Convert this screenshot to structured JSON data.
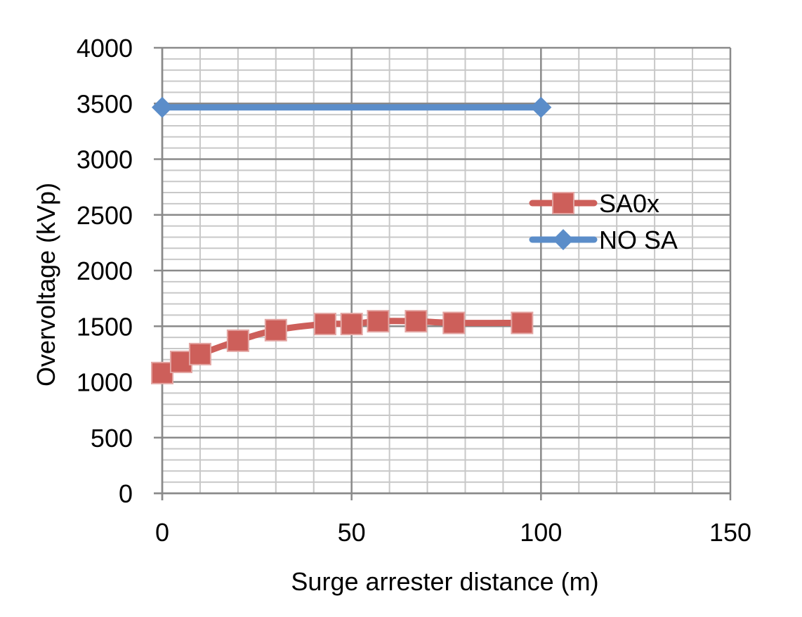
{
  "chart_data": {
    "type": "scatter",
    "xlabel": "Surge arrester distance (m)",
    "ylabel": "Overvoltage (kVp)",
    "xlim": [
      0,
      150
    ],
    "ylim": [
      0,
      4000
    ],
    "x_ticks": [
      "0",
      "50",
      "100",
      "150"
    ],
    "y_ticks": [
      "0",
      "500",
      "1000",
      "1500",
      "2000",
      "2500",
      "3000",
      "3500",
      "4000"
    ],
    "x_minor_step": 10,
    "y_minor_step": 100,
    "grid": true,
    "legend_position": "right",
    "series": [
      {
        "name": "SA0x",
        "color": "#cd5f5a",
        "marker": "square",
        "smooth": true,
        "points": [
          {
            "x": 0,
            "y": 1080
          },
          {
            "x": 5,
            "y": 1180
          },
          {
            "x": 10,
            "y": 1250
          },
          {
            "x": 20,
            "y": 1370
          },
          {
            "x": 30,
            "y": 1465
          },
          {
            "x": 43,
            "y": 1520
          },
          {
            "x": 50,
            "y": 1520
          },
          {
            "x": 57,
            "y": 1545
          },
          {
            "x": 67,
            "y": 1545
          },
          {
            "x": 77,
            "y": 1530
          },
          {
            "x": 95,
            "y": 1530
          }
        ]
      },
      {
        "name": "NO SA",
        "color": "#5b8dc9",
        "marker": "diamond",
        "smooth": false,
        "points": [
          {
            "x": 0,
            "y": 3465
          },
          {
            "x": 100,
            "y": 3465
          }
        ]
      }
    ]
  }
}
